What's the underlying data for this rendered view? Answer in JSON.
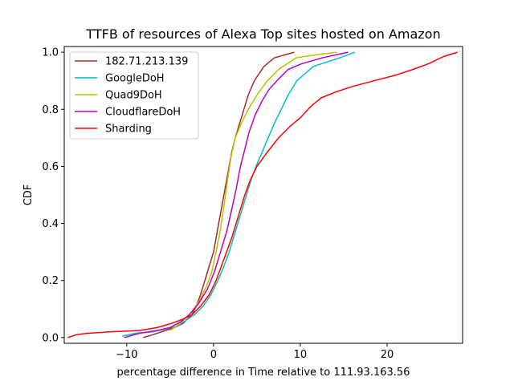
{
  "chart_data": {
    "type": "line",
    "title": "TTFB of resources of Alexa Top sites hosted on Amazon",
    "xlabel": "percentage difference in Time relative to 111.93.163.56",
    "ylabel": "CDF",
    "xlim": [
      -17.2,
      28.7
    ],
    "ylim": [
      -0.02,
      1.02
    ],
    "xticks": [
      -10,
      0,
      10,
      20
    ],
    "xtick_labels": [
      "−10",
      "0",
      "10",
      "20"
    ],
    "yticks": [
      0.0,
      0.2,
      0.4,
      0.6,
      0.8,
      1.0
    ],
    "ytick_labels": [
      "0.0",
      "0.2",
      "0.4",
      "0.6",
      "0.8",
      "1.0"
    ],
    "grid": false,
    "legend_position": "top-left",
    "series": [
      {
        "name": "182.71.213.139",
        "color": "#a52a2a",
        "points": [
          [
            -8.1,
            0.0
          ],
          [
            -7.0,
            0.01
          ],
          [
            -5.5,
            0.025
          ],
          [
            -4.5,
            0.035
          ],
          [
            -3.5,
            0.05
          ],
          [
            -2.5,
            0.08
          ],
          [
            -2.0,
            0.11
          ],
          [
            -1.5,
            0.15
          ],
          [
            -1.0,
            0.2
          ],
          [
            -0.5,
            0.25
          ],
          [
            0.0,
            0.3
          ],
          [
            0.3,
            0.35
          ],
          [
            0.6,
            0.4
          ],
          [
            0.9,
            0.45
          ],
          [
            1.2,
            0.5
          ],
          [
            1.5,
            0.55
          ],
          [
            1.8,
            0.6
          ],
          [
            2.1,
            0.65
          ],
          [
            2.5,
            0.7
          ],
          [
            3.0,
            0.75
          ],
          [
            3.5,
            0.8
          ],
          [
            4.0,
            0.85
          ],
          [
            4.7,
            0.9
          ],
          [
            5.8,
            0.95
          ],
          [
            7.0,
            0.98
          ],
          [
            9.3,
            1.0
          ]
        ]
      },
      {
        "name": "GoogleDoH",
        "color": "#00bfbf",
        "points": [
          [
            -10.5,
            0.005
          ],
          [
            -9.0,
            0.015
          ],
          [
            -7.0,
            0.02
          ],
          [
            -5.5,
            0.03
          ],
          [
            -4.2,
            0.04
          ],
          [
            -3.2,
            0.06
          ],
          [
            -2.2,
            0.08
          ],
          [
            -1.2,
            0.11
          ],
          [
            -0.3,
            0.15
          ],
          [
            0.5,
            0.2
          ],
          [
            1.2,
            0.25
          ],
          [
            1.8,
            0.3
          ],
          [
            2.3,
            0.35
          ],
          [
            2.8,
            0.4
          ],
          [
            3.3,
            0.45
          ],
          [
            3.8,
            0.5
          ],
          [
            4.3,
            0.55
          ],
          [
            4.9,
            0.6
          ],
          [
            5.6,
            0.65
          ],
          [
            6.3,
            0.7
          ],
          [
            7.0,
            0.75
          ],
          [
            7.8,
            0.8
          ],
          [
            8.6,
            0.85
          ],
          [
            9.6,
            0.9
          ],
          [
            11.5,
            0.95
          ],
          [
            14.5,
            0.98
          ],
          [
            16.3,
            1.0
          ]
        ]
      },
      {
        "name": "Quad9DoH",
        "color": "#bfbf00",
        "points": [
          [
            -5.0,
            0.025
          ],
          [
            -4.3,
            0.04
          ],
          [
            -3.5,
            0.06
          ],
          [
            -2.5,
            0.09
          ],
          [
            -1.6,
            0.13
          ],
          [
            -0.8,
            0.18
          ],
          [
            -0.2,
            0.23
          ],
          [
            0.3,
            0.3
          ],
          [
            0.8,
            0.38
          ],
          [
            1.2,
            0.46
          ],
          [
            1.6,
            0.55
          ],
          [
            2.0,
            0.63
          ],
          [
            2.5,
            0.7
          ],
          [
            3.2,
            0.75
          ],
          [
            4.0,
            0.8
          ],
          [
            5.0,
            0.85
          ],
          [
            6.2,
            0.9
          ],
          [
            7.5,
            0.94
          ],
          [
            9.5,
            0.98
          ],
          [
            11.5,
            0.99
          ],
          [
            14.2,
            1.0
          ]
        ]
      },
      {
        "name": "CloudflareDoH",
        "color": "#bf00bf",
        "points": [
          [
            -10.3,
            0.0
          ],
          [
            -8.5,
            0.015
          ],
          [
            -6.5,
            0.025
          ],
          [
            -5.0,
            0.035
          ],
          [
            -3.8,
            0.055
          ],
          [
            -2.8,
            0.08
          ],
          [
            -1.7,
            0.12
          ],
          [
            -0.7,
            0.17
          ],
          [
            0.1,
            0.23
          ],
          [
            0.8,
            0.3
          ],
          [
            1.5,
            0.37
          ],
          [
            2.1,
            0.45
          ],
          [
            2.6,
            0.52
          ],
          [
            3.1,
            0.6
          ],
          [
            3.6,
            0.66
          ],
          [
            4.1,
            0.72
          ],
          [
            4.8,
            0.78
          ],
          [
            5.6,
            0.83
          ],
          [
            6.4,
            0.87
          ],
          [
            7.3,
            0.9
          ],
          [
            8.6,
            0.94
          ],
          [
            10.2,
            0.96
          ],
          [
            12.5,
            0.98
          ],
          [
            15.5,
            1.0
          ]
        ]
      },
      {
        "name": "Sharding",
        "color": "#ff0000",
        "points": [
          [
            -16.8,
            0.0
          ],
          [
            -15.8,
            0.01
          ],
          [
            -14.5,
            0.015
          ],
          [
            -12.0,
            0.02
          ],
          [
            -8.5,
            0.025
          ],
          [
            -6.5,
            0.035
          ],
          [
            -4.8,
            0.05
          ],
          [
            -3.5,
            0.065
          ],
          [
            -2.5,
            0.08
          ],
          [
            -1.5,
            0.11
          ],
          [
            -0.5,
            0.15
          ],
          [
            0.3,
            0.2
          ],
          [
            0.9,
            0.25
          ],
          [
            1.5,
            0.3
          ],
          [
            2.1,
            0.35
          ],
          [
            2.6,
            0.4
          ],
          [
            3.1,
            0.45
          ],
          [
            3.6,
            0.5
          ],
          [
            4.2,
            0.55
          ],
          [
            5.0,
            0.6
          ],
          [
            6.2,
            0.65
          ],
          [
            7.5,
            0.7
          ],
          [
            8.8,
            0.74
          ],
          [
            10.0,
            0.77
          ],
          [
            11.2,
            0.81
          ],
          [
            12.4,
            0.84
          ],
          [
            14.0,
            0.86
          ],
          [
            16.0,
            0.88
          ],
          [
            18.5,
            0.9
          ],
          [
            21.0,
            0.92
          ],
          [
            23.0,
            0.94
          ],
          [
            24.8,
            0.96
          ],
          [
            26.5,
            0.985
          ],
          [
            28.1,
            1.0
          ]
        ]
      }
    ]
  }
}
